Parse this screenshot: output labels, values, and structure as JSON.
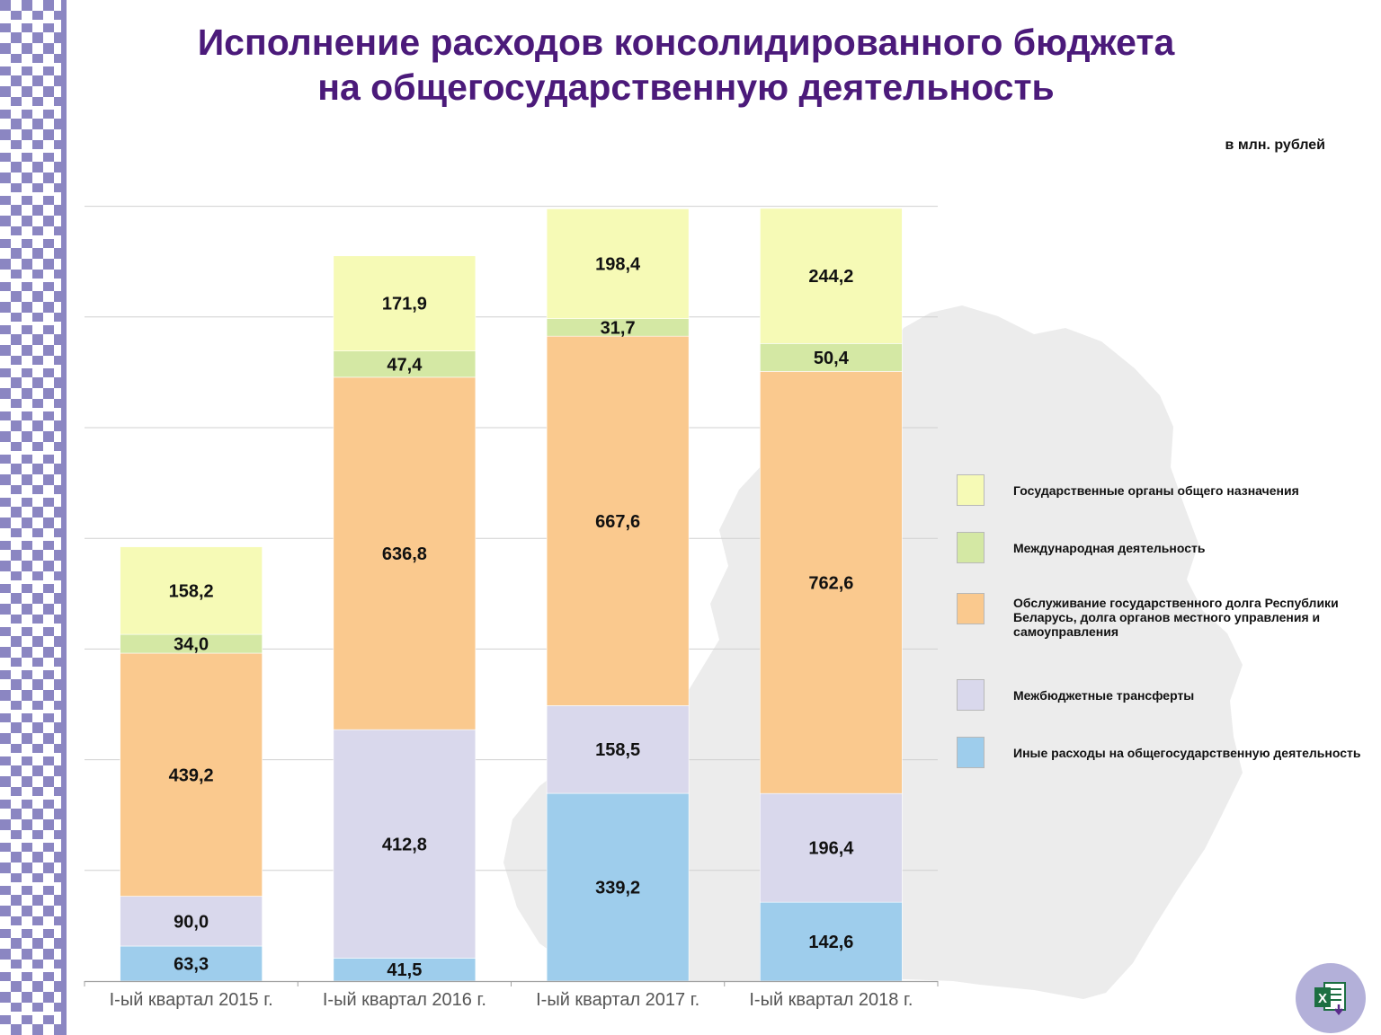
{
  "header": {
    "title_line1": "Исполнение расходов консолидированного бюджета",
    "title_line2": "на общегосударственную деятельность",
    "units": "в млн. рублей"
  },
  "colors": {
    "ornament": "#8b86c2",
    "title": "#4b1a7a",
    "map": "#ececec",
    "excel_button": "#b3b0d9"
  },
  "chart_data": {
    "type": "bar",
    "stacked": true,
    "categories": [
      "I-ый квартал 2015 г.",
      "I-ый квартал 2016 г.",
      "I-ый квартал 2017 г.",
      "I-ый квартал 2018 г."
    ],
    "series": [
      {
        "name": "Иные расходы на общегосударственную деятельность",
        "color": "#9ecdec",
        "values": [
          63.3,
          41.5,
          339.2,
          142.6
        ],
        "labels": [
          "63,3",
          "41,5",
          "339,2",
          "142,6"
        ]
      },
      {
        "name": "Межбюджетные трансферты",
        "color": "#d9d8ec",
        "values": [
          90.0,
          412.8,
          158.5,
          196.4
        ],
        "labels": [
          "90,0",
          "412,8",
          "158,5",
          "196,4"
        ]
      },
      {
        "name": "Обслуживание государственного долга Республики Беларусь, долга органов местного управления и самоуправления",
        "color": "#fac98e",
        "values": [
          439.2,
          636.8,
          667.6,
          762.6
        ],
        "labels": [
          "439,2",
          "636,8",
          "667,6",
          "762,6"
        ]
      },
      {
        "name": "Международная деятельность",
        "color": "#d4e8a4",
        "values": [
          34.0,
          47.4,
          31.7,
          50.4
        ],
        "labels": [
          "34,0",
          "47,4",
          "31,7",
          "50,4"
        ]
      },
      {
        "name": "Государственные органы общего назначения",
        "color": "#f6fab6",
        "values": [
          158.2,
          171.9,
          198.4,
          244.2
        ],
        "labels": [
          "158,2",
          "171,9",
          "198,4",
          "244,2"
        ]
      }
    ],
    "ylim": [
      0,
      1500
    ],
    "grid": true,
    "legend_position": "right",
    "legend_order": [
      4,
      3,
      2,
      1,
      0
    ]
  },
  "actions": {
    "excel_icon": "excel-download-icon"
  }
}
